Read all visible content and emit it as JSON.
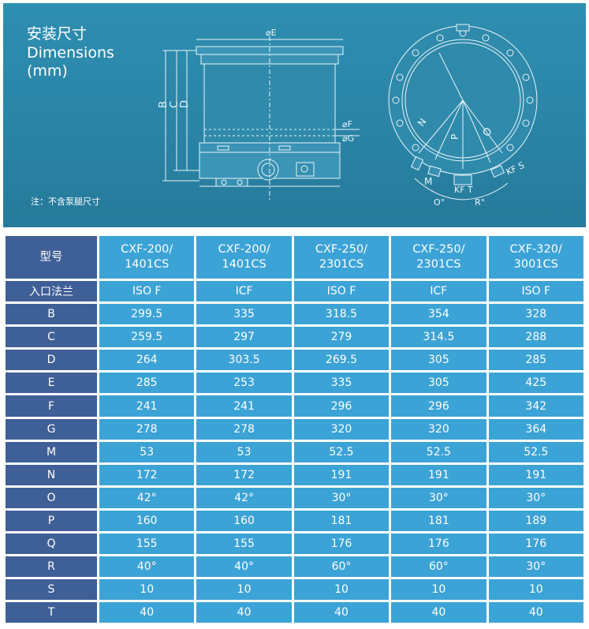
{
  "header": {
    "title_cn": "安装尺寸",
    "title_en_line1": "Dimensions",
    "title_en_line2": "(mm)",
    "note": "注：不含泵腿尺寸"
  },
  "drawing": {
    "side_labels": {
      "e": "⌀E",
      "f": "⌀F",
      "g": "⌀G",
      "b": "B",
      "c": "C",
      "d": "D"
    },
    "top_labels": {
      "n": "N",
      "p": "P",
      "o": "O",
      "m": "M",
      "kf_t": "KF T",
      "kf_s": "KF S",
      "o_angle": "O°",
      "r_angle": "R°"
    }
  },
  "table": {
    "header_label": "型号",
    "models": [
      {
        "line1": "CXF-200/",
        "line2": "1401CS"
      },
      {
        "line1": "CXF-200/",
        "line2": "1401CS"
      },
      {
        "line1": "CXF-250/",
        "line2": "2301CS"
      },
      {
        "line1": "CXF-250/",
        "line2": "2301CS"
      },
      {
        "line1": "CXF-320/",
        "line2": "3001CS"
      }
    ],
    "rows": [
      {
        "label": "入口法兰",
        "values": [
          "ISO F",
          "ICF",
          "ISO F",
          "ICF",
          "ISO F"
        ]
      },
      {
        "label": "B",
        "values": [
          "299.5",
          "335",
          "318.5",
          "354",
          "328"
        ]
      },
      {
        "label": "C",
        "values": [
          "259.5",
          "297",
          "279",
          "314.5",
          "288"
        ]
      },
      {
        "label": "D",
        "values": [
          "264",
          "303.5",
          "269.5",
          "305",
          "285"
        ]
      },
      {
        "label": "E",
        "values": [
          "285",
          "253",
          "335",
          "305",
          "425"
        ]
      },
      {
        "label": "F",
        "values": [
          "241",
          "241",
          "296",
          "296",
          "342"
        ]
      },
      {
        "label": "G",
        "values": [
          "278",
          "278",
          "320",
          "320",
          "364"
        ]
      },
      {
        "label": "M",
        "values": [
          "53",
          "53",
          "52.5",
          "52.5",
          "52.5"
        ]
      },
      {
        "label": "N",
        "values": [
          "172",
          "172",
          "191",
          "191",
          "191"
        ]
      },
      {
        "label": "O",
        "values": [
          "42°",
          "42°",
          "30°",
          "30°",
          "30°"
        ]
      },
      {
        "label": "P",
        "values": [
          "160",
          "160",
          "181",
          "181",
          "189"
        ]
      },
      {
        "label": "Q",
        "values": [
          "155",
          "155",
          "176",
          "176",
          "176"
        ]
      },
      {
        "label": "R",
        "values": [
          "40°",
          "40°",
          "60°",
          "60°",
          "30°"
        ]
      },
      {
        "label": "S",
        "values": [
          "10",
          "10",
          "10",
          "10",
          "10"
        ]
      },
      {
        "label": "T",
        "values": [
          "40",
          "40",
          "40",
          "40",
          "40"
        ]
      }
    ]
  },
  "colors": {
    "hero_bg": "#2a84a6",
    "label_cell": "#3f5f97",
    "value_cell": "#3ca3d6",
    "line": "#ffffff"
  }
}
